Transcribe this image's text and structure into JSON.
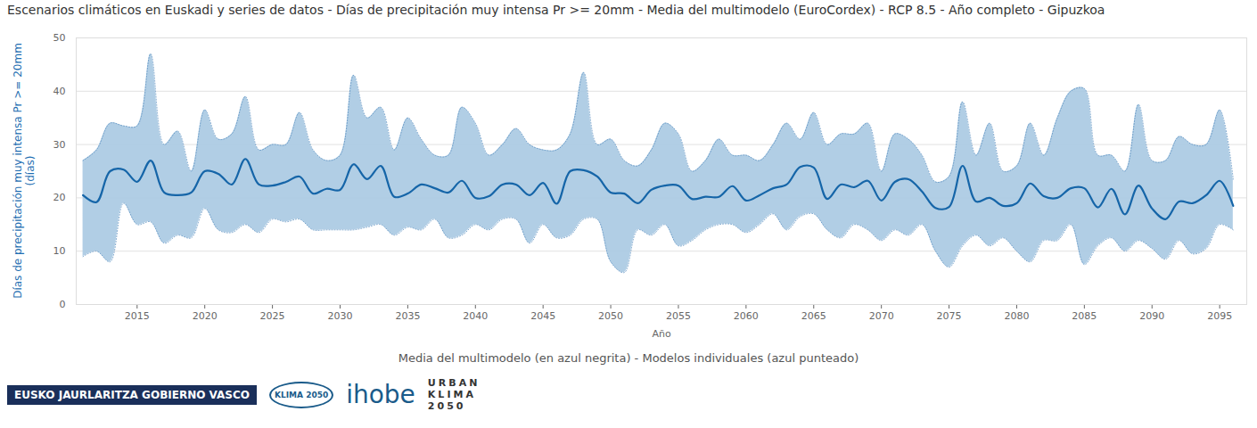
{
  "chart_data": {
    "type": "line",
    "title": "Escenarios climáticos en Euskadi y series de datos - Días de precipitación muy intensa Pr >= 20mm - Media del multimodelo (EuroCordex) - RCP 8.5 - Año completo - Gipuzkoa",
    "xlabel": "Año",
    "ylabel": [
      "Días de precipitación muy intensa Pr >= 20mm",
      "(días)"
    ],
    "caption": "Media del multimodelo (en azul negrita) - Modelos individuales (azul punteado)",
    "footer": [
      "EUSKO JAURLARITZA GOBIERNO VASCO",
      "KLIMA 2050",
      "ihobe",
      "URBAN KLIMA 2050"
    ],
    "x": [
      2011,
      2012,
      2013,
      2014,
      2015,
      2016,
      2017,
      2018,
      2019,
      2020,
      2021,
      2022,
      2023,
      2024,
      2025,
      2026,
      2027,
      2028,
      2029,
      2030,
      2031,
      2032,
      2033,
      2034,
      2035,
      2036,
      2037,
      2038,
      2039,
      2040,
      2041,
      2042,
      2043,
      2044,
      2045,
      2046,
      2047,
      2048,
      2049,
      2050,
      2051,
      2052,
      2053,
      2054,
      2055,
      2056,
      2057,
      2058,
      2059,
      2060,
      2061,
      2062,
      2063,
      2064,
      2065,
      2066,
      2067,
      2068,
      2069,
      2070,
      2071,
      2072,
      2073,
      2074,
      2075,
      2076,
      2077,
      2078,
      2079,
      2080,
      2081,
      2082,
      2083,
      2084,
      2085,
      2086,
      2087,
      2088,
      2089,
      2090,
      2091,
      2092,
      2093,
      2094,
      2095,
      2096
    ],
    "values": [
      20.5,
      19.2,
      25,
      25.3,
      23,
      27,
      21,
      20.5,
      21,
      25,
      24.5,
      22.5,
      27.3,
      22.5,
      22.3,
      23,
      24,
      20.8,
      21.7,
      21.5,
      26.3,
      23.5,
      26,
      20.2,
      20.8,
      22.5,
      21.8,
      21,
      23.2,
      20,
      20.3,
      22.5,
      22.5,
      20.5,
      22.8,
      18.9,
      25,
      25.2,
      24,
      21,
      20.8,
      19,
      21.5,
      22.3,
      22.3,
      19.8,
      20.2,
      20.2,
      22.2,
      19.5,
      20.5,
      21.8,
      22.5,
      25.8,
      25.7,
      19.8,
      22.5,
      22,
      23.2,
      19.5,
      23,
      23.5,
      21.2,
      18.1,
      18.3,
      26,
      19.3,
      20,
      18.5,
      19,
      22.7,
      20.3,
      20,
      21.8,
      21.8,
      18.2,
      21.7,
      16.9,
      22.3,
      18,
      16,
      19.3,
      19,
      20.5,
      23.2,
      18.5
    ],
    "color": "#1565a8",
    "band": {
      "color": "#a9c9e2",
      "lower": [
        9,
        10,
        8,
        19,
        15,
        15.5,
        11.5,
        13,
        12.5,
        18,
        14,
        13.5,
        15,
        13.5,
        16,
        15.5,
        16,
        14,
        14,
        14,
        14,
        14.5,
        15,
        13,
        14.5,
        14,
        16,
        12.5,
        13,
        15,
        14,
        16,
        16,
        11.5,
        15,
        12.5,
        13,
        16,
        16,
        8,
        6,
        14,
        13,
        15,
        11,
        12,
        14,
        15,
        15,
        13.5,
        15,
        17,
        14,
        16.5,
        17,
        14,
        12.5,
        15,
        14,
        12,
        14,
        13,
        15,
        10,
        7,
        11,
        13,
        11,
        12.5,
        10,
        8,
        12,
        12,
        15,
        7.5,
        11,
        12.5,
        10,
        12,
        10.5,
        8.5,
        12,
        9.5,
        10.5,
        15,
        14
      ],
      "upper": [
        27,
        29,
        34,
        33.5,
        33.5,
        47,
        30,
        32.5,
        25,
        36.5,
        31,
        32,
        39,
        29,
        30,
        30,
        36,
        29,
        27,
        28,
        43,
        35,
        37,
        29,
        35,
        31,
        28,
        28,
        37,
        34,
        28,
        30,
        33,
        30,
        29,
        29,
        32,
        43.5,
        30,
        31,
        27,
        26,
        29,
        34,
        32,
        25,
        27,
        31,
        28,
        28,
        27,
        30,
        34,
        31,
        36,
        30,
        32,
        32,
        34,
        25,
        32,
        31,
        28,
        23,
        24,
        38,
        28,
        34,
        25,
        26,
        34,
        28,
        35,
        40,
        40.5,
        28,
        28,
        25,
        37.5,
        27,
        27,
        31.5,
        30,
        30,
        36.5,
        23.5
      ]
    },
    "xlim": [
      2010.5,
      2097
    ],
    "xticks": [
      2015,
      2020,
      2025,
      2030,
      2035,
      2040,
      2045,
      2050,
      2055,
      2060,
      2065,
      2070,
      2075,
      2080,
      2085,
      2090,
      2095
    ],
    "ylim": [
      0,
      50
    ],
    "yticks": [
      0,
      10,
      20,
      30,
      40,
      50
    ],
    "grid": true
  }
}
